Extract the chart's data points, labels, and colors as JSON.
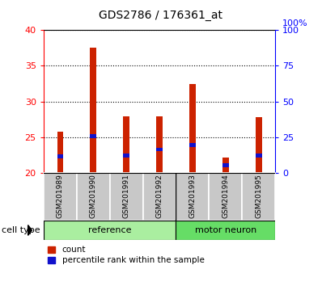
{
  "title": "GDS2786 / 176361_at",
  "samples": [
    "GSM201989",
    "GSM201990",
    "GSM201991",
    "GSM201992",
    "GSM201993",
    "GSM201994",
    "GSM201995"
  ],
  "count_values": [
    25.8,
    37.5,
    27.9,
    27.9,
    32.5,
    22.2,
    27.8
  ],
  "percentile_values": [
    22.3,
    25.2,
    22.4,
    23.3,
    23.9,
    21.1,
    22.4
  ],
  "ylim_left": [
    20,
    40
  ],
  "ylim_right": [
    0,
    100
  ],
  "yticks_left": [
    20,
    25,
    30,
    35,
    40
  ],
  "yticks_right": [
    0,
    25,
    50,
    75,
    100
  ],
  "count_color": "#cc2200",
  "percentile_color": "#1111cc",
  "n_ref": 4,
  "n_motor": 3,
  "ref_label": "reference",
  "motor_label": "motor neuron",
  "cell_type_label": "cell type",
  "legend_count": "count",
  "legend_percentile": "percentile rank within the sample",
  "tick_bg_color": "#c8c8c8",
  "ref_bg_color": "#aaeea0",
  "motor_bg_color": "#66dd66",
  "base_value": 20,
  "bar_width": 0.18
}
